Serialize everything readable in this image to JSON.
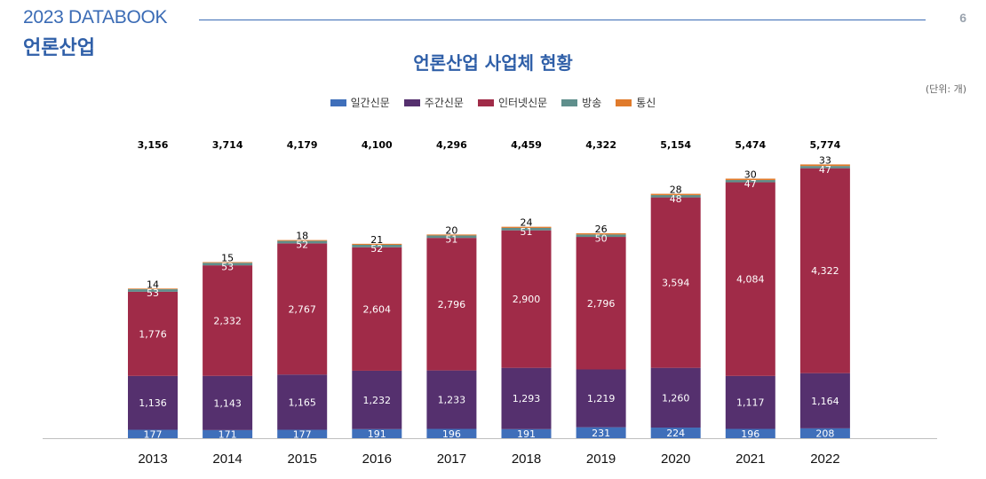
{
  "header": {
    "title": "2023 DATABOOK",
    "subtitle": "언론산업",
    "page_number": "6"
  },
  "unit_label": "(단위: 개)",
  "chart_data": {
    "type": "bar",
    "stacked": true,
    "title": "언론산업 사업체 현황",
    "xlabel": "",
    "ylabel": "",
    "legend_position": "top-center",
    "grid": false,
    "categories": [
      "2013",
      "2014",
      "2015",
      "2016",
      "2017",
      "2018",
      "2019",
      "2020",
      "2021",
      "2022"
    ],
    "totals": [
      "3,156",
      "3,714",
      "4,179",
      "4,100",
      "4,296",
      "4,459",
      "4,322",
      "5,154",
      "5,474",
      "5,774"
    ],
    "series": [
      {
        "name": "일간신문",
        "color": "#3f6fba",
        "label_color": "#ffffff",
        "values": [
          177,
          171,
          177,
          191,
          196,
          191,
          231,
          224,
          196,
          208
        ]
      },
      {
        "name": "주간신문",
        "color": "#55306e",
        "label_color": "#ffffff",
        "values": [
          1136,
          1143,
          1165,
          1232,
          1233,
          1293,
          1219,
          1260,
          1117,
          1164
        ]
      },
      {
        "name": "인터넷신문",
        "color": "#a02b48",
        "label_color": "#ffffff",
        "values": [
          1776,
          2332,
          2767,
          2604,
          2796,
          2900,
          2796,
          3594,
          4084,
          4322
        ]
      },
      {
        "name": "방송",
        "color": "#5f8f8c",
        "label_color": "#ffffff",
        "values": [
          53,
          53,
          52,
          52,
          51,
          51,
          50,
          48,
          47,
          47
        ]
      },
      {
        "name": "통신",
        "color": "#e07b2c",
        "label_color": "#000000",
        "values": [
          14,
          15,
          18,
          21,
          20,
          24,
          26,
          28,
          30,
          33
        ]
      }
    ]
  }
}
